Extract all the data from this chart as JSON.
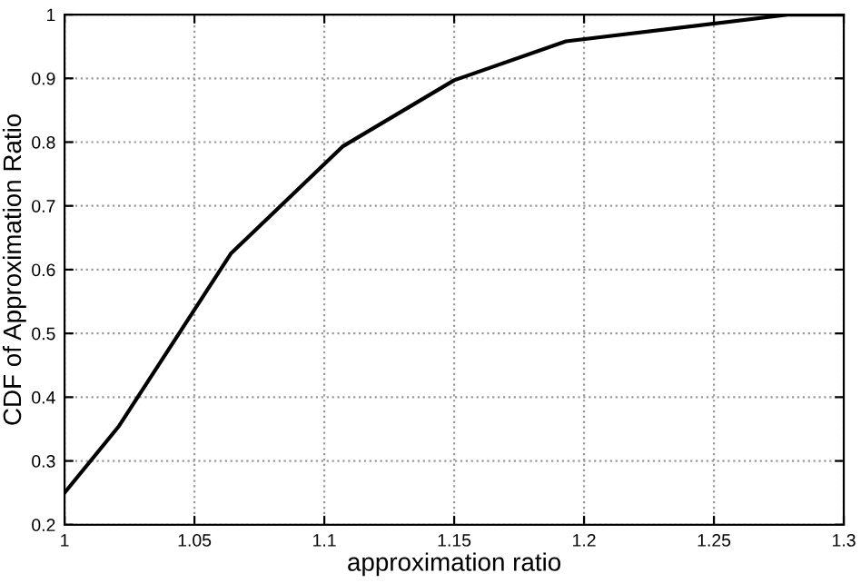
{
  "chart_data": {
    "type": "line",
    "xlabel": "approximation ratio",
    "ylabel": "CDF of Approximation Ratio",
    "x": [
      1,
      1.021,
      1.064,
      1.107,
      1.15,
      1.193,
      1.279,
      1.3
    ],
    "series": [
      {
        "color": "#000000",
        "values": [
          0.25,
          0.355,
          0.625,
          0.793,
          0.897,
          0.958,
          1.0,
          1.0
        ]
      }
    ],
    "xlim": [
      1,
      1.3
    ],
    "xticks": [
      1,
      1.05,
      1.1,
      1.15,
      1.2,
      1.25,
      1.3
    ],
    "ylim": [
      0.2,
      1.0
    ],
    "yticks": [
      0.2,
      0.3,
      0.4,
      0.5,
      0.6,
      0.7,
      0.8,
      0.9,
      1
    ],
    "grid": true,
    "line_style": "solid",
    "marker": "none",
    "legend": false
  }
}
